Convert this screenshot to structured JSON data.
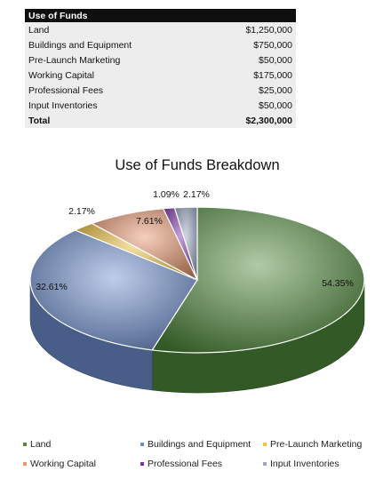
{
  "table": {
    "title": "Use of Funds",
    "rows": [
      {
        "item": "Land",
        "amount": "$1,250,000"
      },
      {
        "item": "Buildings and Equipment",
        "amount": "$750,000"
      },
      {
        "item": "Pre-Launch Marketing",
        "amount": "$50,000"
      },
      {
        "item": "Working Capital",
        "amount": "$175,000"
      },
      {
        "item": "Professional Fees",
        "amount": "$25,000"
      },
      {
        "item": "Input Inventories",
        "amount": "$50,000"
      }
    ],
    "total_label": "Total",
    "total_amount": "$2,300,000"
  },
  "chart_data": {
    "type": "pie",
    "title": "Use of Funds Breakdown",
    "categories": [
      "Land",
      "Buildings and Equipment",
      "Pre-Launch Marketing",
      "Working Capital",
      "Professional Fees",
      "Input Inventories"
    ],
    "values": [
      54.35,
      32.61,
      2.17,
      7.61,
      1.09,
      2.17
    ],
    "data_labels": [
      "54.35%",
      "32.61%",
      "2.17%",
      "7.61%",
      "1.09%",
      "2.17%"
    ],
    "colors": [
      "#4f8a3a",
      "#6f8fd0",
      "#f2c23a",
      "#e8956c",
      "#7d2fa8",
      "#9aa6c4"
    ],
    "legend_position": "bottom",
    "style": "3d"
  }
}
